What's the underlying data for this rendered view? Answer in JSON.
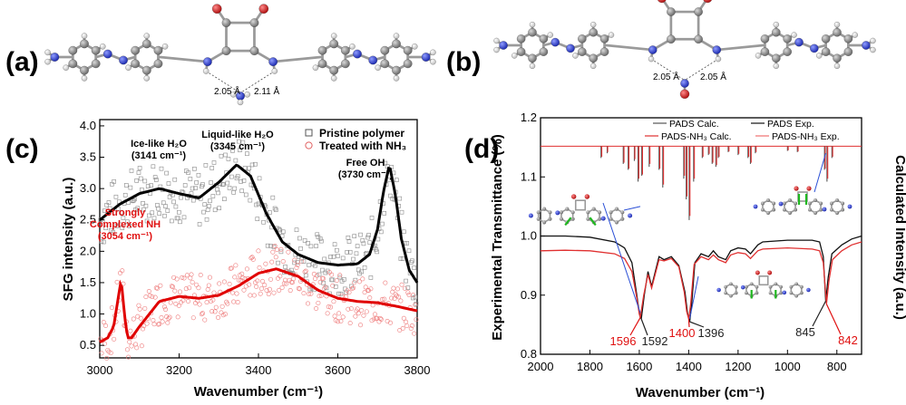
{
  "panels": {
    "a": "(a)",
    "b": "(b)",
    "c": "(c)",
    "d": "(d)"
  },
  "molecules": {
    "a": {
      "distance_left": "2.05 Å",
      "distance_right": "2.11 Å"
    },
    "b": {
      "distance_left": "2.05 Å",
      "distance_right": "2.05 Å"
    },
    "colors": {
      "carbon": "#8a8a8a",
      "nitrogen": "#2a3fd6",
      "oxygen": "#d62020",
      "hydrogen": "#f2f2f2"
    }
  },
  "chart_data": [
    {
      "id": "c",
      "type": "scatter",
      "xlabel": "Wavenumber (cm⁻¹)",
      "ylabel": "SFG intensity (a.u.)",
      "xlim": [
        3000,
        3800
      ],
      "ylim": [
        0.3,
        4.1
      ],
      "xticks": [
        3000,
        3200,
        3400,
        3600,
        3800
      ],
      "xtick_labels": [
        "3000",
        "3200",
        "3400",
        "3600",
        "3800"
      ],
      "yticks": [
        0.5,
        1.0,
        1.5,
        2.0,
        2.5,
        3.0,
        3.5,
        4.0
      ],
      "ytick_labels": [
        "0.5",
        "1.0",
        "1.5",
        "2.0",
        "2.5",
        "3.0",
        "3.5",
        "4.0"
      ],
      "legend": [
        {
          "label": "Pristine polymer",
          "color": "#555555",
          "marker": "square"
        },
        {
          "label": "Treated with NH₃",
          "color": "#e06060",
          "marker": "circle"
        }
      ],
      "annotations": [
        {
          "line1": "Ice-like H₂O",
          "line2": "(3141 cm⁻¹)",
          "x": 3141,
          "y": 3.75,
          "color": "#000000"
        },
        {
          "line1": "Liquid-like H₂O",
          "line2": "(3345 cm⁻¹)",
          "x": 3345,
          "y": 3.9,
          "color": "#000000"
        },
        {
          "line1": "Free OH",
          "line2": "(3730 cm⁻¹)",
          "x": 3720,
          "y": 3.55,
          "color": "#000000"
        },
        {
          "line1": "Strongly",
          "line2": "Complexed NH",
          "line3": "(3054 cm⁻¹)",
          "x": 3054,
          "y": 2.35,
          "color": "#e01010"
        }
      ],
      "series": [
        {
          "name": "Pristine polymer fit",
          "color": "#000000",
          "x": [
            3000,
            3050,
            3100,
            3150,
            3200,
            3250,
            3300,
            3345,
            3380,
            3420,
            3460,
            3500,
            3550,
            3600,
            3650,
            3680,
            3700,
            3715,
            3730,
            3745,
            3760,
            3780,
            3800
          ],
          "y": [
            2.5,
            2.75,
            2.92,
            3.0,
            2.92,
            2.85,
            3.1,
            3.38,
            3.2,
            2.6,
            2.15,
            1.95,
            1.82,
            1.78,
            1.8,
            1.95,
            2.35,
            2.95,
            3.38,
            2.9,
            2.2,
            1.7,
            1.5
          ]
        },
        {
          "name": "Treated with NH₃ fit",
          "color": "#e00000",
          "x": [
            3000,
            3020,
            3035,
            3045,
            3054,
            3062,
            3070,
            3080,
            3100,
            3150,
            3200,
            3250,
            3300,
            3350,
            3400,
            3445,
            3500,
            3550,
            3600,
            3650,
            3700,
            3750,
            3800
          ],
          "y": [
            0.55,
            0.62,
            0.8,
            1.2,
            1.55,
            1.0,
            0.62,
            0.62,
            0.8,
            1.2,
            1.28,
            1.25,
            1.3,
            1.45,
            1.65,
            1.72,
            1.6,
            1.38,
            1.25,
            1.2,
            1.18,
            1.12,
            1.05
          ]
        }
      ]
    },
    {
      "id": "d",
      "type": "line",
      "xlabel": "Wavenumber (cm⁻¹)",
      "ylabel_left": "Experimental Transmittance (%)",
      "ylabel_right": "Calculated Intensity (a.u.)",
      "xlim": [
        2000,
        700
      ],
      "ylim": [
        0.8,
        1.2
      ],
      "xticks": [
        2000,
        1800,
        1600,
        1400,
        1200,
        1000,
        800
      ],
      "xtick_labels": [
        "2000",
        "1800",
        "1600",
        "1400",
        "1200",
        "1000",
        "800"
      ],
      "yticks": [
        0.8,
        0.9,
        1.0,
        1.1,
        1.2
      ],
      "ytick_labels": [
        "0.8",
        "0.9",
        "1.0",
        "1.1",
        "1.2"
      ],
      "legend": [
        {
          "label": "PADS Calc.",
          "color": "#555555"
        },
        {
          "label": "PADS Exp.",
          "color": "#111111"
        },
        {
          "label": "PADS-NH₃ Calc.",
          "color": "#e03030"
        },
        {
          "label": "PADS-NH₃ Exp.",
          "color": "#f07070"
        }
      ],
      "peak_labels": [
        {
          "text": "1596",
          "x": 1596,
          "color": "#e01010"
        },
        {
          "text": "1592",
          "x": 1592,
          "color": "#222222"
        },
        {
          "text": "1400",
          "x": 1400,
          "color": "#e01010"
        },
        {
          "text": "1396",
          "x": 1396,
          "color": "#222222"
        },
        {
          "text": "845",
          "x": 845,
          "color": "#222222"
        },
        {
          "text": "842",
          "x": 842,
          "color": "#e01010"
        }
      ],
      "series": [
        {
          "name": "PADS Exp.",
          "color": "#111111",
          "x": [
            2000,
            1900,
            1800,
            1700,
            1660,
            1630,
            1610,
            1600,
            1592,
            1580,
            1565,
            1550,
            1520,
            1500,
            1470,
            1440,
            1415,
            1405,
            1396,
            1388,
            1375,
            1350,
            1320,
            1300,
            1280,
            1250,
            1230,
            1200,
            1170,
            1150,
            1120,
            1100,
            1000,
            900,
            870,
            855,
            845,
            835,
            820,
            780,
            740,
            700
          ],
          "y": [
            1.0,
            1.0,
            0.998,
            0.99,
            0.98,
            0.955,
            0.9,
            0.87,
            0.86,
            0.9,
            0.94,
            0.915,
            0.965,
            0.96,
            0.965,
            0.95,
            0.905,
            0.87,
            0.855,
            0.885,
            0.955,
            0.97,
            0.965,
            0.975,
            0.965,
            0.96,
            0.975,
            0.98,
            0.978,
            0.97,
            0.985,
            0.99,
            0.993,
            0.993,
            0.99,
            0.965,
            0.89,
            0.93,
            0.97,
            0.985,
            0.995,
            1.0
          ]
        },
        {
          "name": "PADS-NH₃ Exp.",
          "color": "#e03030",
          "x": [
            2000,
            1900,
            1800,
            1700,
            1660,
            1630,
            1610,
            1600,
            1596,
            1582,
            1565,
            1550,
            1520,
            1500,
            1470,
            1440,
            1418,
            1408,
            1400,
            1392,
            1378,
            1350,
            1320,
            1300,
            1280,
            1250,
            1230,
            1200,
            1170,
            1150,
            1120,
            1100,
            1000,
            900,
            870,
            855,
            842,
            832,
            818,
            780,
            740,
            700
          ],
          "y": [
            0.975,
            0.976,
            0.975,
            0.97,
            0.962,
            0.94,
            0.895,
            0.868,
            0.862,
            0.9,
            0.935,
            0.912,
            0.96,
            0.958,
            0.962,
            0.948,
            0.905,
            0.872,
            0.86,
            0.885,
            0.952,
            0.965,
            0.96,
            0.968,
            0.96,
            0.955,
            0.968,
            0.972,
            0.97,
            0.962,
            0.975,
            0.978,
            0.98,
            0.978,
            0.975,
            0.955,
            0.885,
            0.925,
            0.96,
            0.975,
            0.985,
            0.99
          ]
        }
      ],
      "calc_sticks": {
        "baseline": 1.152,
        "PADS": {
          "color": "#555555",
          "x": [
            1755,
            1730,
            1665,
            1645,
            1620,
            1605,
            1590,
            1560,
            1520,
            1505,
            1420,
            1410,
            1398,
            1380,
            1345,
            1320,
            1305,
            1290,
            1280,
            1240,
            1200,
            1160,
            1150,
            1130,
            1000,
            960,
            850,
            840,
            820
          ],
          "h": [
            0.02,
            0.012,
            0.03,
            0.04,
            0.025,
            0.06,
            0.05,
            0.035,
            0.04,
            0.07,
            0.055,
            0.09,
            0.125,
            0.06,
            0.02,
            0.015,
            0.03,
            0.035,
            0.02,
            0.01,
            0.015,
            0.02,
            0.03,
            0.012,
            0.008,
            0.01,
            0.04,
            0.06,
            0.02
          ]
        },
        "PADS-NH3": {
          "color": "#e03030",
          "x": [
            1752,
            1728,
            1662,
            1642,
            1618,
            1602,
            1587,
            1557,
            1517,
            1502,
            1417,
            1407,
            1395,
            1377,
            1342,
            1317,
            1302,
            1287,
            1277,
            1237,
            1197,
            1157,
            1147,
            1127,
            997,
            957,
            847,
            837,
            817
          ],
          "h": [
            0.018,
            0.01,
            0.028,
            0.038,
            0.022,
            0.055,
            0.048,
            0.03,
            0.038,
            0.065,
            0.05,
            0.085,
            0.118,
            0.055,
            0.018,
            0.013,
            0.028,
            0.032,
            0.018,
            0.009,
            0.013,
            0.018,
            0.028,
            0.01,
            0.007,
            0.009,
            0.038,
            0.055,
            0.018
          ]
        }
      }
    }
  ]
}
